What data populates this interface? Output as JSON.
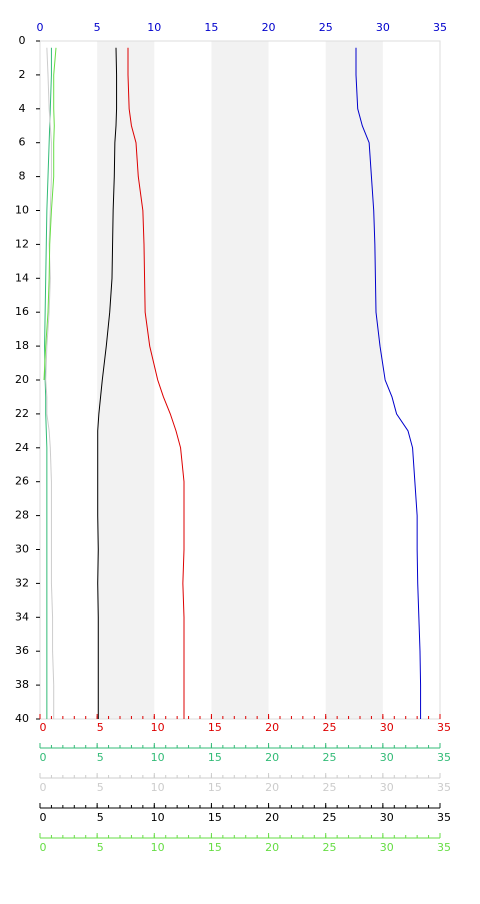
{
  "chart_data": {
    "type": "profile",
    "ylim": [
      0,
      40
    ],
    "yticks": [
      0,
      2,
      4,
      6,
      8,
      10,
      12,
      14,
      16,
      18,
      20,
      22,
      24,
      26,
      28,
      30,
      32,
      34,
      36,
      38,
      40
    ],
    "xlim": [
      0,
      35
    ],
    "xticks": [
      0,
      5,
      10,
      15,
      20,
      25,
      30,
      35
    ],
    "xminor_step": 1,
    "bands": [
      [
        5,
        10
      ],
      [
        15,
        20
      ],
      [
        25,
        30
      ]
    ],
    "band_color": "#f2f2f2",
    "y": [
      0.4,
      2,
      4,
      5,
      6,
      8,
      10,
      12,
      14,
      16,
      18,
      20,
      21,
      22,
      23,
      24,
      26,
      28,
      30,
      32,
      34,
      36,
      38,
      40
    ],
    "series": [
      {
        "color": "#0000cc",
        "axis": "top",
        "values": [
          27.65,
          27.65,
          27.8,
          28.2,
          28.8,
          29.0,
          29.2,
          29.3,
          29.35,
          29.4,
          29.75,
          30.2,
          30.8,
          31.2,
          32.2,
          32.6,
          32.8,
          33.0,
          33.0,
          33.05,
          33.15,
          33.25,
          33.3,
          33.3
        ]
      },
      {
        "color": "#dd0000",
        "axis": "bottom",
        "values": [
          7.7,
          7.7,
          7.8,
          8.0,
          8.4,
          8.6,
          9.0,
          9.1,
          9.15,
          9.2,
          9.6,
          10.3,
          10.8,
          11.4,
          11.9,
          12.3,
          12.6,
          12.6,
          12.6,
          12.5,
          12.6,
          12.6,
          12.6,
          12.6
        ]
      },
      {
        "color": "#33bb77",
        "axis": "bottom",
        "values": [
          1.0,
          1.0,
          0.9,
          0.85,
          0.8,
          0.7,
          0.6,
          0.55,
          0.5,
          0.45,
          0.4,
          0.45,
          0.5,
          0.5,
          0.55,
          0.6,
          0.6,
          0.6,
          0.6,
          0.6,
          0.6,
          0.6,
          0.6,
          0.6
        ]
      },
      {
        "color": "#cccccc",
        "axis": "bottom",
        "values": [
          0.6,
          0.7,
          0.8,
          0.9,
          1.0,
          1.0,
          0.9,
          0.8,
          0.9,
          0.8,
          0.6,
          0.5,
          0.6,
          0.6,
          0.8,
          0.9,
          1.0,
          1.0,
          1.0,
          1.0,
          1.1,
          1.1,
          1.2,
          1.2
        ]
      },
      {
        "color": "#000000",
        "axis": "bottom",
        "values": [
          6.65,
          6.7,
          6.7,
          6.65,
          6.55,
          6.5,
          6.4,
          6.35,
          6.3,
          6.1,
          5.8,
          5.45,
          5.3,
          5.15,
          5.05,
          5.05,
          5.05,
          5.05,
          5.1,
          5.05,
          5.1,
          5.1,
          5.1,
          5.1
        ]
      },
      {
        "color": "#66dd44",
        "axis": "bottom",
        "values": [
          1.4,
          1.2,
          1.2,
          1.25,
          1.2,
          1.2,
          1.0,
          0.85,
          0.8,
          0.7,
          0.5,
          0.35,
          null,
          null,
          null,
          null,
          null,
          null,
          null,
          null,
          null,
          null,
          null,
          null
        ]
      }
    ]
  }
}
